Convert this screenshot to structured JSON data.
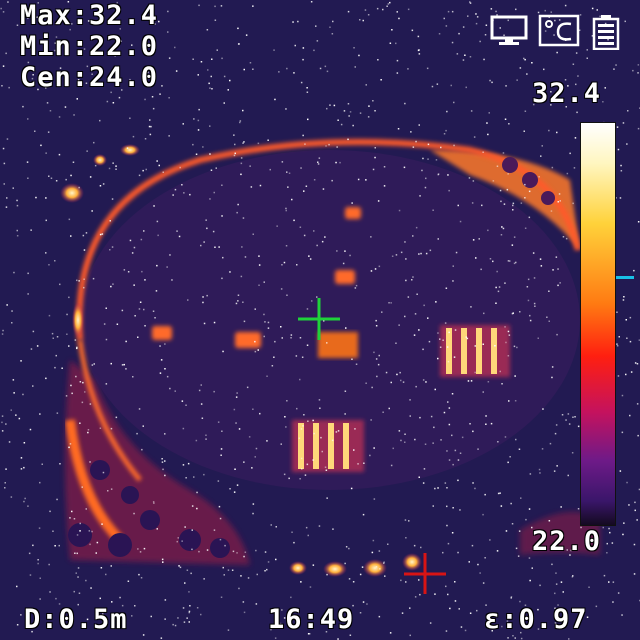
{
  "readings": {
    "max": "Max:32.4",
    "min": "Min:22.0",
    "center": "Cen:24.0"
  },
  "scale": {
    "max": "32.4",
    "min": "22.0",
    "marker_level": 0.38
  },
  "status_bar": {
    "distance": "D:0.5m",
    "time": "16:49",
    "emissivity": "ε:0.97"
  },
  "icons": {
    "display": "monitor-icon",
    "unit": "celsius-unit-icon",
    "battery": "battery-icon",
    "center_cursor": "center-crosshair-icon",
    "hotspot_cursor": "hotspot-crosshair-icon"
  },
  "colors": {
    "background": "#221a52",
    "hot": "#ffe08a",
    "warm": "#ff5a1e",
    "center_crosshair": "#1fd23a",
    "hotspot_crosshair": "#d81414",
    "marker": "#19c0e6"
  }
}
